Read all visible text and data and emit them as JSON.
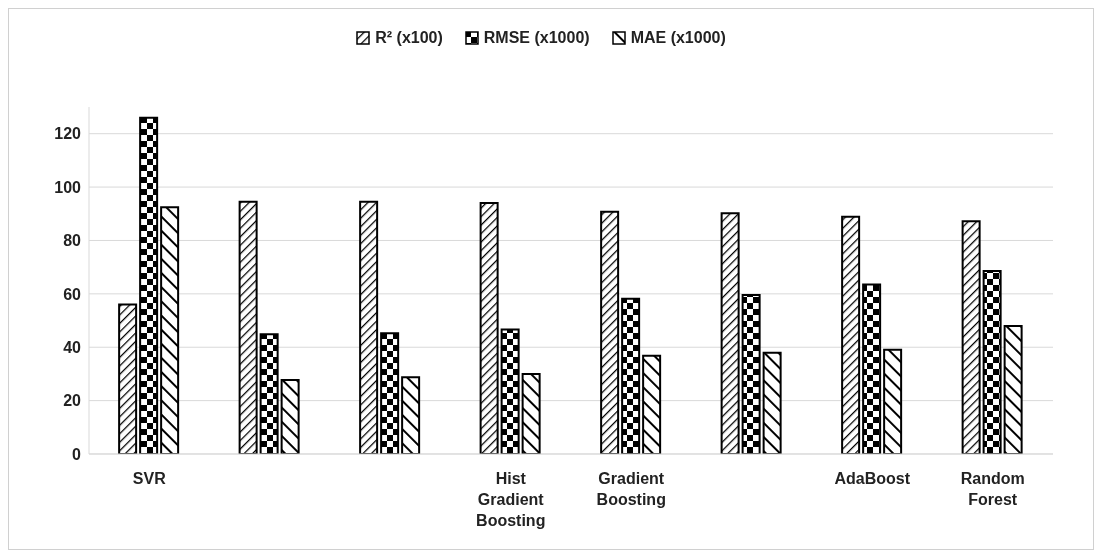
{
  "chart_data": {
    "type": "bar",
    "categories": [
      "SVR",
      null,
      null,
      "Hist Gradient Boosting",
      "Gradient Boosting",
      null,
      "AdaBoost",
      "Random Forest"
    ],
    "series": [
      {
        "name": "R² (x100)",
        "color": "#000000",
        "values": [
          56,
          94.5,
          94.5,
          94,
          90.8,
          90.2,
          88.9,
          87.2
        ]
      },
      {
        "name": "RMSE (x1000)",
        "color": "#000000",
        "values": [
          126,
          44.9,
          45.2,
          46.6,
          58.2,
          59.6,
          63.5,
          68.6
        ]
      },
      {
        "name": "MAE (x1000)",
        "color": "#000000",
        "values": [
          92.4,
          27.7,
          28.8,
          30,
          36.8,
          37.9,
          39.1,
          48
        ]
      }
    ],
    "ylim": [
      0,
      130
    ],
    "yticks": [
      0,
      20,
      40,
      60,
      80,
      100,
      120
    ],
    "grid": "y",
    "legend": "top"
  }
}
